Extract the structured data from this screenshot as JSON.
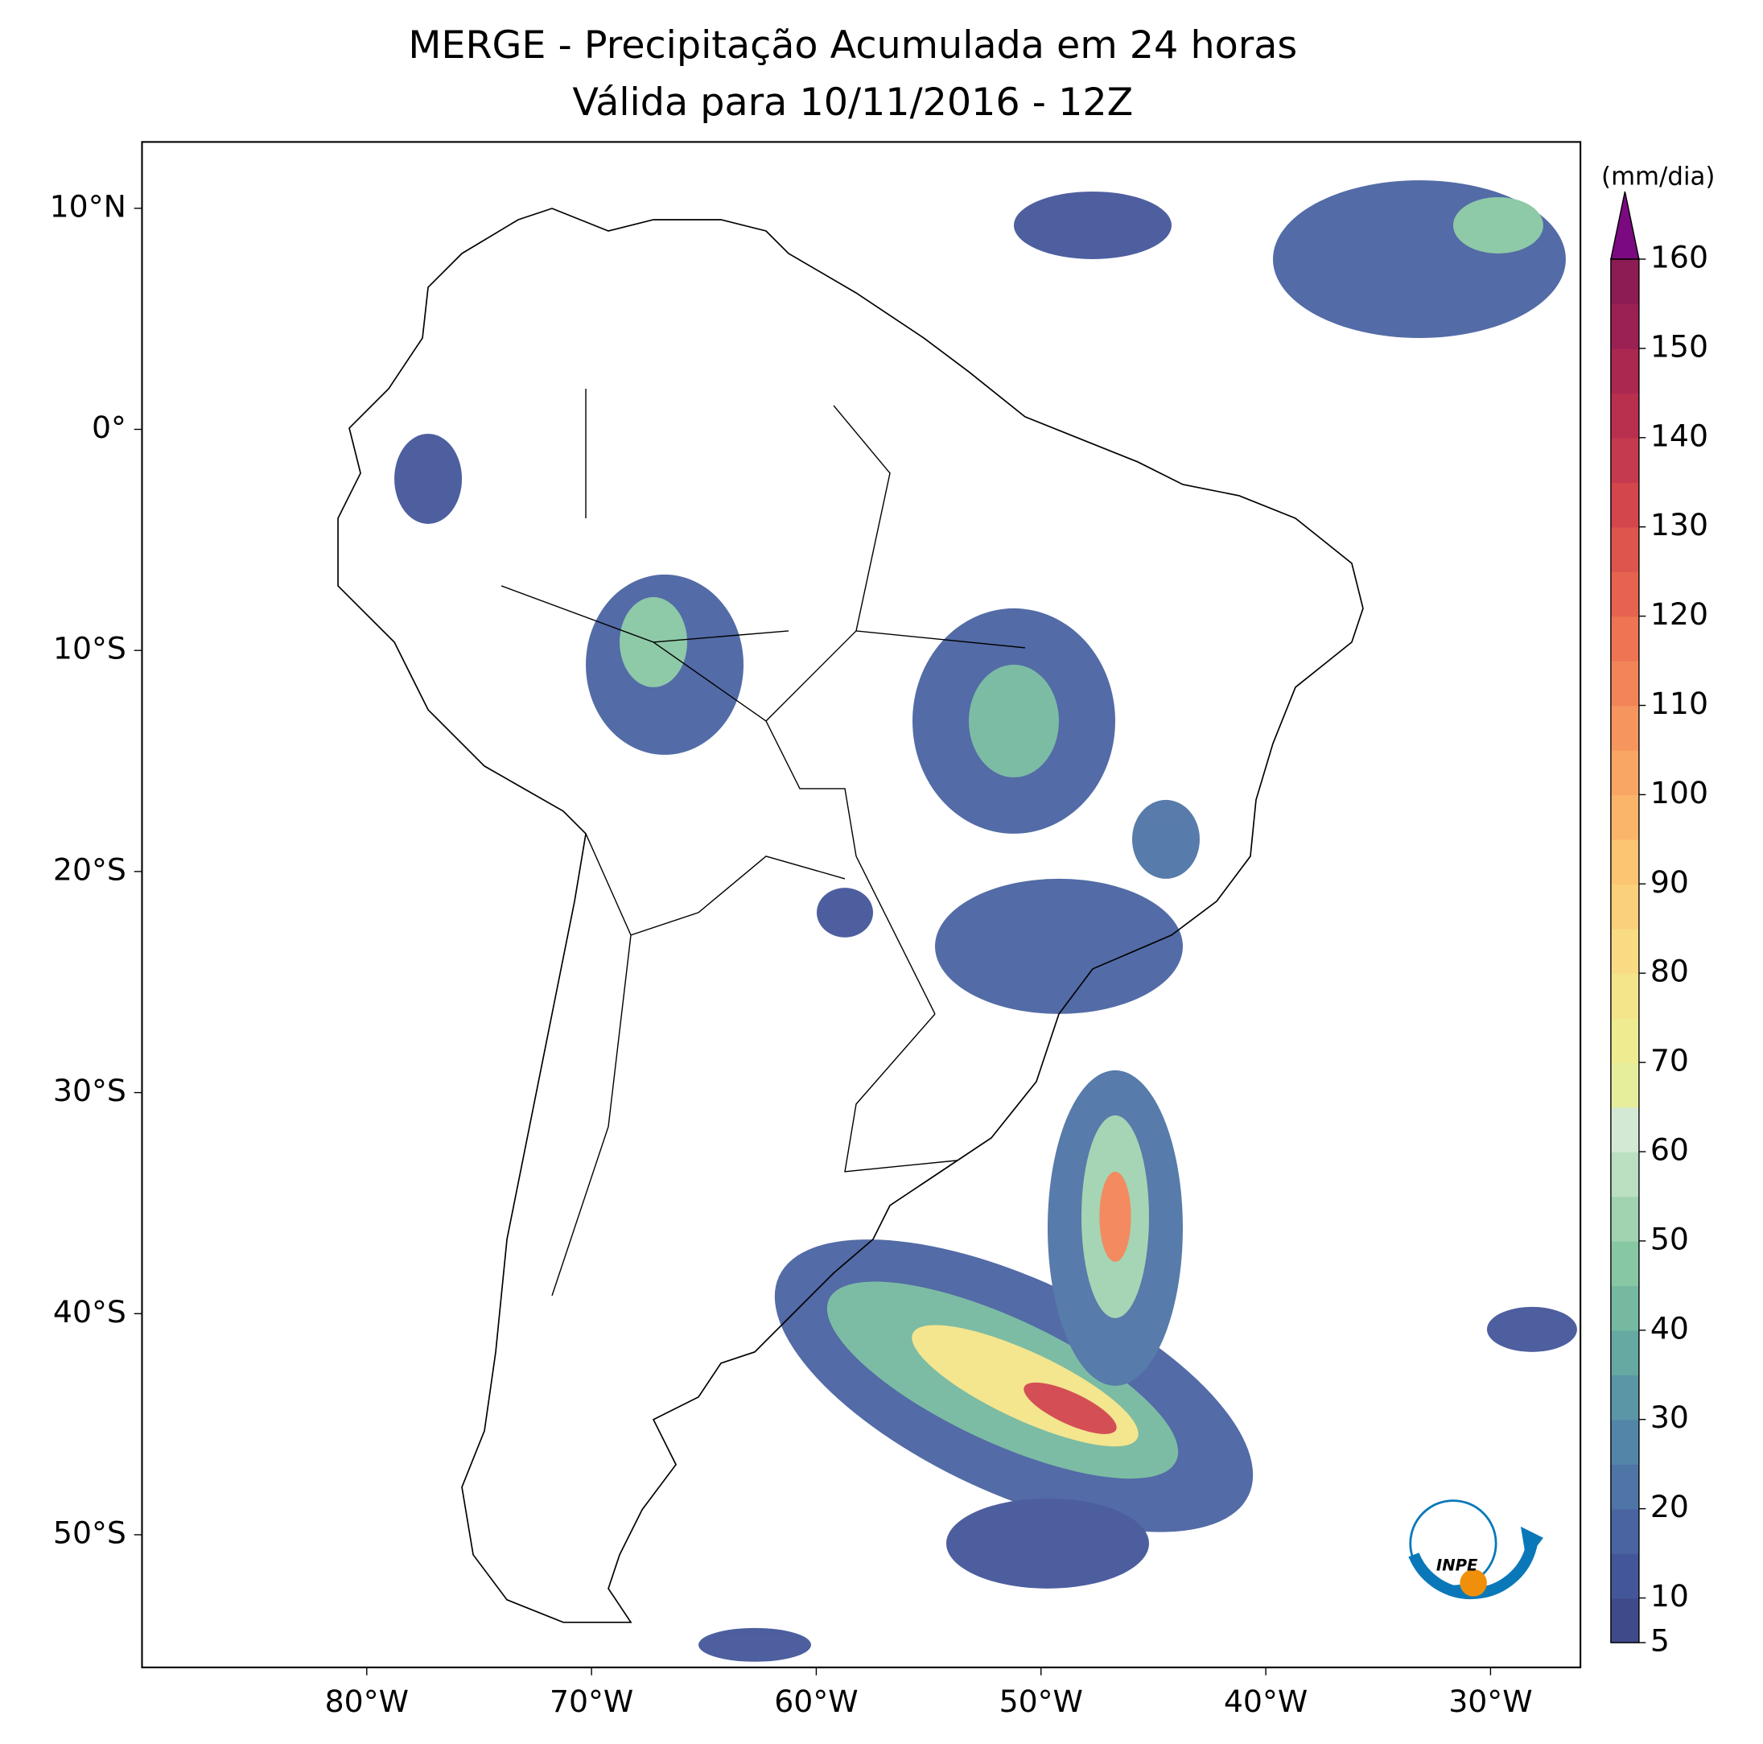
{
  "chart_data": {
    "type": "map",
    "title": "MERGE - Precipitação Acumulada em 24 horas",
    "subtitle": "Válida para 10/11/2016 - 12Z",
    "xlim": [
      -90,
      -26
    ],
    "ylim": [
      -56,
      13
    ],
    "xticks": [
      {
        "value": -80,
        "label": "80°W"
      },
      {
        "value": -70,
        "label": "70°W"
      },
      {
        "value": -60,
        "label": "60°W"
      },
      {
        "value": -50,
        "label": "50°W"
      },
      {
        "value": -40,
        "label": "40°W"
      },
      {
        "value": -30,
        "label": "30°W"
      }
    ],
    "yticks": [
      {
        "value": 10,
        "label": "10°N"
      },
      {
        "value": 0,
        "label": "0°"
      },
      {
        "value": -10,
        "label": "10°S"
      },
      {
        "value": -20,
        "label": "20°S"
      },
      {
        "value": -30,
        "label": "30°S"
      },
      {
        "value": -40,
        "label": "40°S"
      },
      {
        "value": -50,
        "label": "50°S"
      }
    ],
    "colorbar": {
      "label": "(mm/dia)",
      "clim": [
        5,
        160
      ],
      "ticks": [
        5,
        10,
        20,
        30,
        40,
        50,
        60,
        70,
        80,
        90,
        100,
        110,
        120,
        130,
        140,
        150,
        160
      ],
      "colors": [
        "#3e4a89",
        "#44569a",
        "#4a64a2",
        "#4f74a6",
        "#5385a8",
        "#5a96a6",
        "#66a8a2",
        "#75b9a0",
        "#88c7a4",
        "#a1d3b0",
        "#bbdfc1",
        "#d3e9d4",
        "#e6ee9c",
        "#eeeb91",
        "#f4e48a",
        "#f8db82",
        "#fad07a",
        "#fbc572",
        "#fbb56a",
        "#f9a664",
        "#f7955e",
        "#f38458",
        "#ee7453",
        "#e6634f",
        "#dd554d",
        "#d2464c",
        "#c63a4d",
        "#b9304f",
        "#ab2851",
        "#9c2153",
        "#8d1c55"
      ],
      "over_color": "#7b0a80"
    },
    "logo": "INPE"
  }
}
